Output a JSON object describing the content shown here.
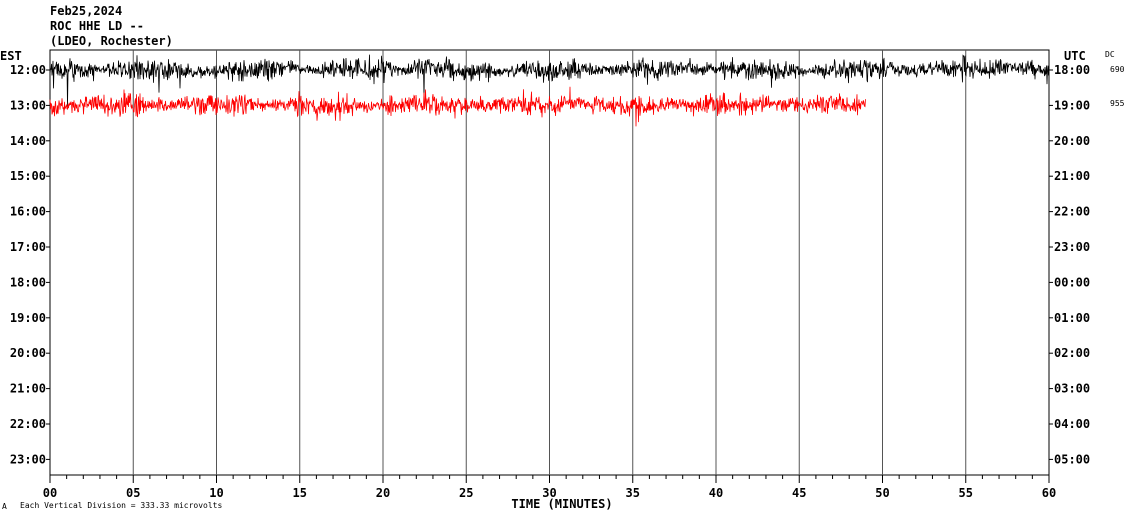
{
  "header": {
    "date": "Feb25,2024",
    "station": "ROC HHE LD --",
    "network": "(LDEO, Rochester)"
  },
  "left_timezone": "EST",
  "right_timezone": "UTC",
  "dc_label": "DC",
  "dc_values": [
    "690",
    "955"
  ],
  "x_axis_label": "TIME (MINUTES)",
  "footnote": "Each Vertical Division =  333.33 microvolts",
  "footnote_marker": "A",
  "chart_data": {
    "type": "line",
    "title": "Feb25,2024 ROC HHE LD -- (LDEO, Rochester)",
    "xlabel": "TIME (MINUTES)",
    "ylabel": "",
    "xlim": [
      0,
      60
    ],
    "x_ticks": [
      "00",
      "05",
      "10",
      "15",
      "20",
      "25",
      "30",
      "35",
      "40",
      "45",
      "50",
      "55",
      "60"
    ],
    "left_hours": [
      "12:00",
      "13:00",
      "14:00",
      "15:00",
      "16:00",
      "17:00",
      "18:00",
      "19:00",
      "20:00",
      "21:00",
      "22:00",
      "23:00"
    ],
    "right_hours": [
      "18:00",
      "19:00",
      "20:00",
      "21:00",
      "22:00",
      "23:00",
      "00:00",
      "01:00",
      "02:00",
      "03:00",
      "04:00",
      "05:00"
    ],
    "grid": "vertical every 5 minutes",
    "series": [
      {
        "trace_hour": "12:00",
        "color": "#000000",
        "start_min": 0,
        "end_min": 60
      },
      {
        "trace_hour": "13:00",
        "color": "#ff0000",
        "start_min": 0,
        "end_min": 49
      }
    ]
  }
}
